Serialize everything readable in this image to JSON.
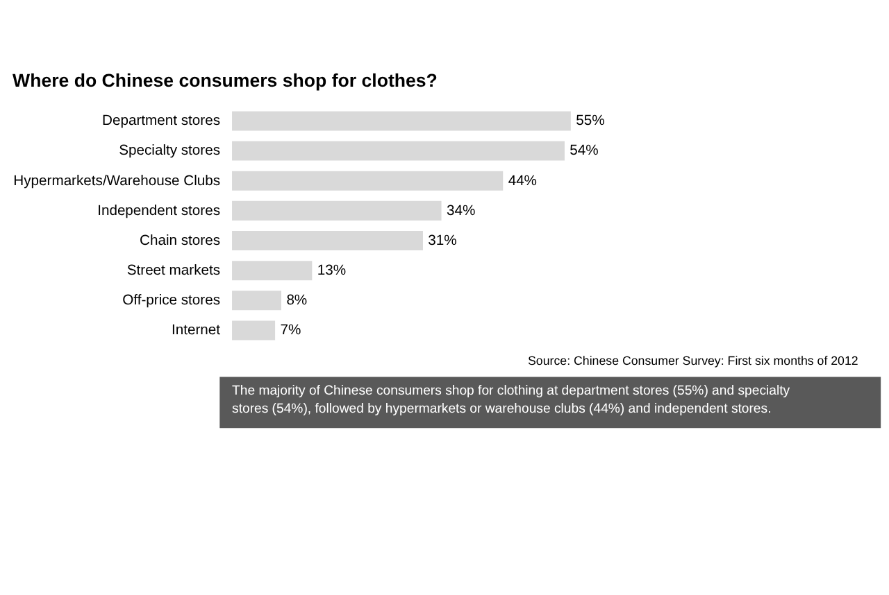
{
  "chart_data": {
    "type": "bar",
    "orientation": "horizontal",
    "title": "Where do Chinese consumers shop for clothes?",
    "categories": [
      "Department stores",
      "Specialty stores",
      "Hypermarkets/Warehouse Clubs",
      "Independent stores",
      "Chain stores",
      "Street markets",
      "Off-price stores",
      "Internet"
    ],
    "values": [
      55,
      54,
      44,
      34,
      31,
      13,
      8,
      7
    ],
    "value_labels": [
      "55%",
      "54%",
      "44%",
      "34%",
      "31%",
      "13%",
      "8%",
      "7%"
    ],
    "color": "#d9d9d9",
    "annotations": [
      "Source: Chinese Consumer Survey: First six months of 2012",
      "The majority of Chinese consumers shop for clothing at department stores (55%) and specialty stores (54%), followed by hypermarkets or warehouse clubs (44%) and independent stores."
    ]
  }
}
